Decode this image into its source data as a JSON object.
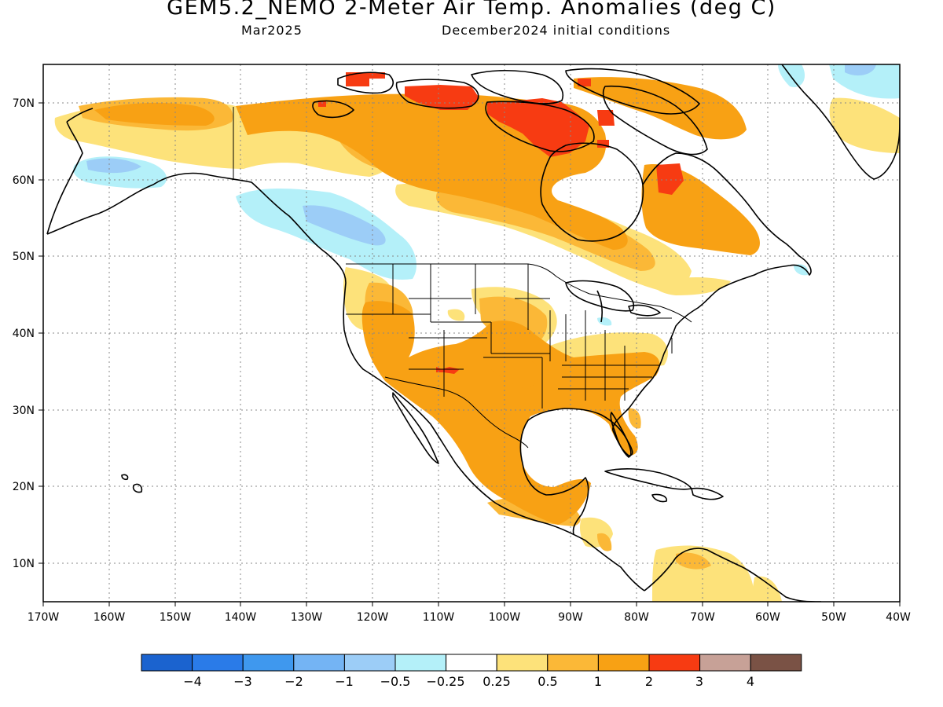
{
  "header": {
    "title": "GEM5.2_NEMO 2-Meter Air Temp. Anomalies (deg C)",
    "valid_month": "Mar2025",
    "init_conditions": "December2024 initial conditions"
  },
  "axes": {
    "lon_labels": [
      "170W",
      "160W",
      "150W",
      "140W",
      "130W",
      "120W",
      "110W",
      "100W",
      "90W",
      "80W",
      "70W",
      "60W",
      "50W",
      "40W"
    ],
    "lat_labels": [
      "70N",
      "60N",
      "50N",
      "40N",
      "30N",
      "20N",
      "10N"
    ],
    "lon_range": [
      -170,
      -40
    ],
    "lat_range": [
      5,
      75
    ],
    "grid": "dotted"
  },
  "colorbar": {
    "colors": [
      "#1b63cf",
      "#2a7be8",
      "#3f98ee",
      "#74b4f4",
      "#9ccdf7",
      "#b4f0f9",
      "#ffffff",
      "#fde27a",
      "#fbb837",
      "#f8a114",
      "#f73b12",
      "#c7a197",
      "#7a5245"
    ],
    "labels": [
      "−4",
      "−3",
      "−2",
      "−1",
      "−0.5",
      "−0.25",
      "0.25",
      "0.5",
      "1",
      "2",
      "3",
      "4"
    ]
  },
  "legend": {
    "items": [
      {
        "color": "#b4f0f9",
        "label": "−0.25 – −0.5"
      },
      {
        "color": "#fde27a",
        "label": "0.25 – 0.5"
      },
      {
        "color": "#fbb837",
        "label": "0.5 – 1"
      },
      {
        "color": "#f8a114",
        "label": "1 – 2"
      },
      {
        "color": "#f73b12",
        "label": "2 – 3"
      }
    ]
  }
}
